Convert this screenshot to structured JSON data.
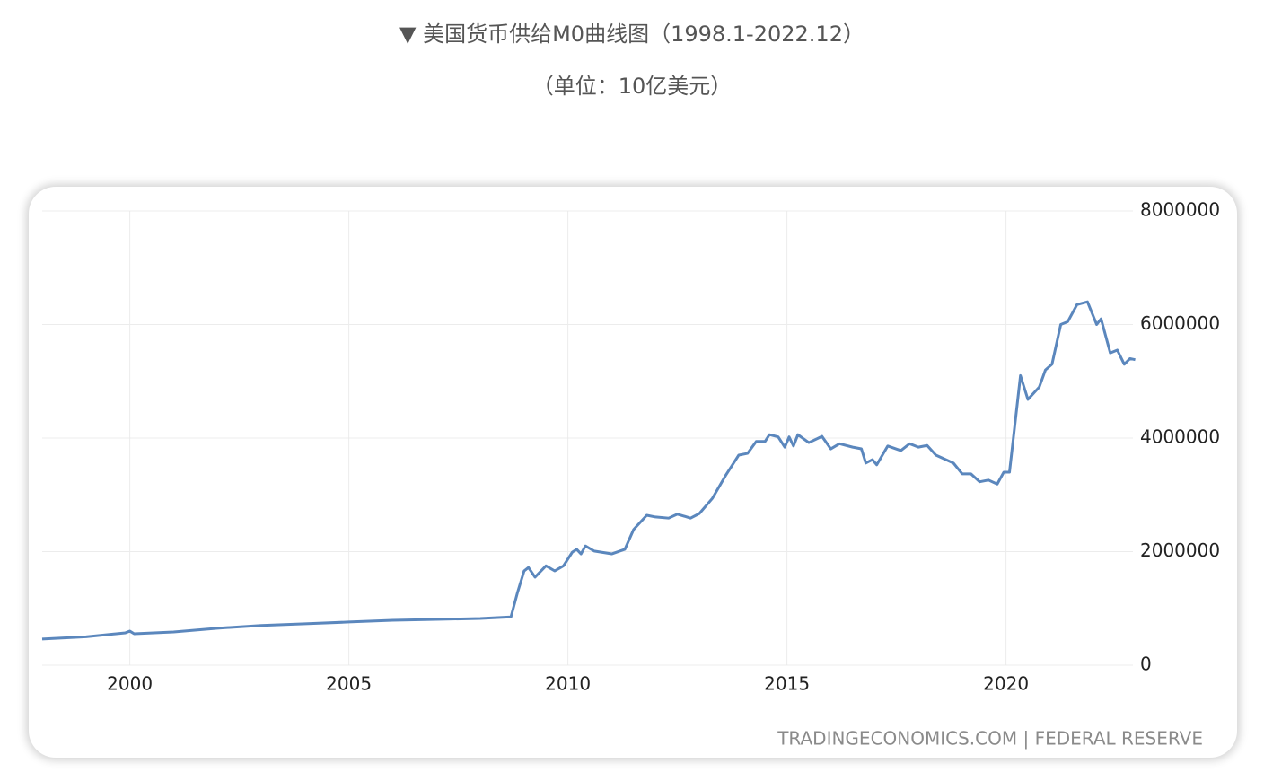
{
  "chart_data": {
    "type": "line",
    "title": "▼ 美国货币供给M0曲线图（1998.1-2022.12）",
    "subtitle": "（单位：10亿美元）",
    "source": "TRADINGECONOMICS.COM | FEDERAL RESERVE",
    "x": [
      1998.0,
      1999.0,
      1999.9,
      2000.0,
      2000.1,
      2001.0,
      2002.0,
      2003.0,
      2004.0,
      2005.0,
      2006.0,
      2007.0,
      2008.0,
      2008.7,
      2008.85,
      2009.0,
      2009.1,
      2009.25,
      2009.5,
      2009.7,
      2009.9,
      2010.1,
      2010.2,
      2010.3,
      2010.4,
      2010.6,
      2011.0,
      2011.3,
      2011.5,
      2011.8,
      2012.0,
      2012.3,
      2012.5,
      2012.8,
      2013.0,
      2013.3,
      2013.6,
      2013.9,
      2014.1,
      2014.3,
      2014.5,
      2014.6,
      2014.8,
      2014.95,
      2015.05,
      2015.15,
      2015.25,
      2015.5,
      2015.8,
      2016.0,
      2016.2,
      2016.5,
      2016.7,
      2016.8,
      2016.95,
      2017.05,
      2017.3,
      2017.6,
      2017.8,
      2018.0,
      2018.2,
      2018.4,
      2018.8,
      2019.0,
      2019.2,
      2019.4,
      2019.6,
      2019.8,
      2019.95,
      2020.08,
      2020.33,
      2020.5,
      2020.76,
      2020.9,
      2021.05,
      2021.25,
      2021.41,
      2021.62,
      2021.86,
      2022.07,
      2022.17,
      2022.38,
      2022.54,
      2022.7,
      2022.83,
      2022.95
    ],
    "series": [
      {
        "name": "M0",
        "color": "#5b87bd",
        "values": [
          460000,
          500000,
          570000,
          600000,
          553000,
          585000,
          650000,
          700000,
          730000,
          760000,
          790000,
          806000,
          822000,
          850000,
          1280000,
          1660000,
          1720000,
          1550000,
          1750000,
          1660000,
          1750000,
          1990000,
          2040000,
          1960000,
          2100000,
          2010000,
          1960000,
          2040000,
          2390000,
          2640000,
          2610000,
          2590000,
          2660000,
          2590000,
          2670000,
          2940000,
          3340000,
          3700000,
          3730000,
          3940000,
          3940000,
          4060000,
          4020000,
          3840000,
          4020000,
          3860000,
          4060000,
          3920000,
          4030000,
          3810000,
          3900000,
          3840000,
          3810000,
          3560000,
          3620000,
          3530000,
          3860000,
          3780000,
          3900000,
          3840000,
          3870000,
          3700000,
          3560000,
          3370000,
          3370000,
          3230000,
          3260000,
          3190000,
          3400000,
          3400000,
          5100000,
          4680000,
          4900000,
          5200000,
          5300000,
          6000000,
          6050000,
          6350000,
          6400000,
          6000000,
          6100000,
          5500000,
          5550000,
          5300000,
          5400000,
          5380000
        ]
      }
    ],
    "xlim": [
      1998,
      2023
    ],
    "xticks": [
      2000,
      2005,
      2010,
      2015,
      2020
    ],
    "ylim": [
      0,
      8000000
    ],
    "yticks": [
      0,
      2000000,
      4000000,
      6000000,
      8000000
    ],
    "grid": true
  }
}
